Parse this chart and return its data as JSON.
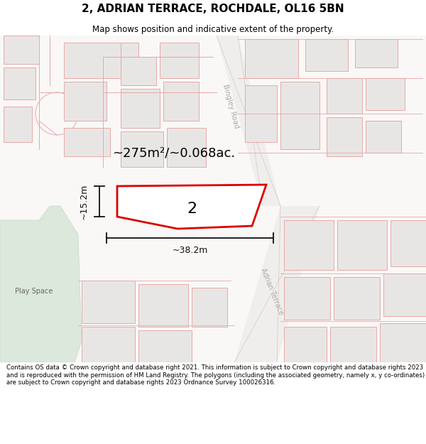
{
  "title": "2, ADRIAN TERRACE, ROCHDALE, OL16 5BN",
  "subtitle": "Map shows position and indicative extent of the property.",
  "footer": "Contains OS data © Crown copyright and database right 2021. This information is subject to Crown copyright and database rights 2023 and is reproduced with the permission of HM Land Registry. The polygons (including the associated geometry, namely x, y co-ordinates) are subject to Crown copyright and database rights 2023 Ordnance Survey 100026316.",
  "area_label": "~275m²/~0.068ac.",
  "width_label": "~38.2m",
  "height_label": "~15.2m",
  "plot_number": "2",
  "map_bg": "#f7f6f4",
  "bldg_fill": "#e8e6e4",
  "bldg_stroke": "#e8a8a8",
  "road_fill": "#f0eeec",
  "green_fill": "#dce8dc",
  "highlight_stroke": "#dd0000",
  "dim_color": "#111111",
  "road_label_color": "#aaaaaa",
  "title_fontsize": 11,
  "subtitle_fontsize": 8.5,
  "footer_fontsize": 6.2,
  "area_fontsize": 13,
  "plot_num_fontsize": 16,
  "dim_fontsize": 9
}
